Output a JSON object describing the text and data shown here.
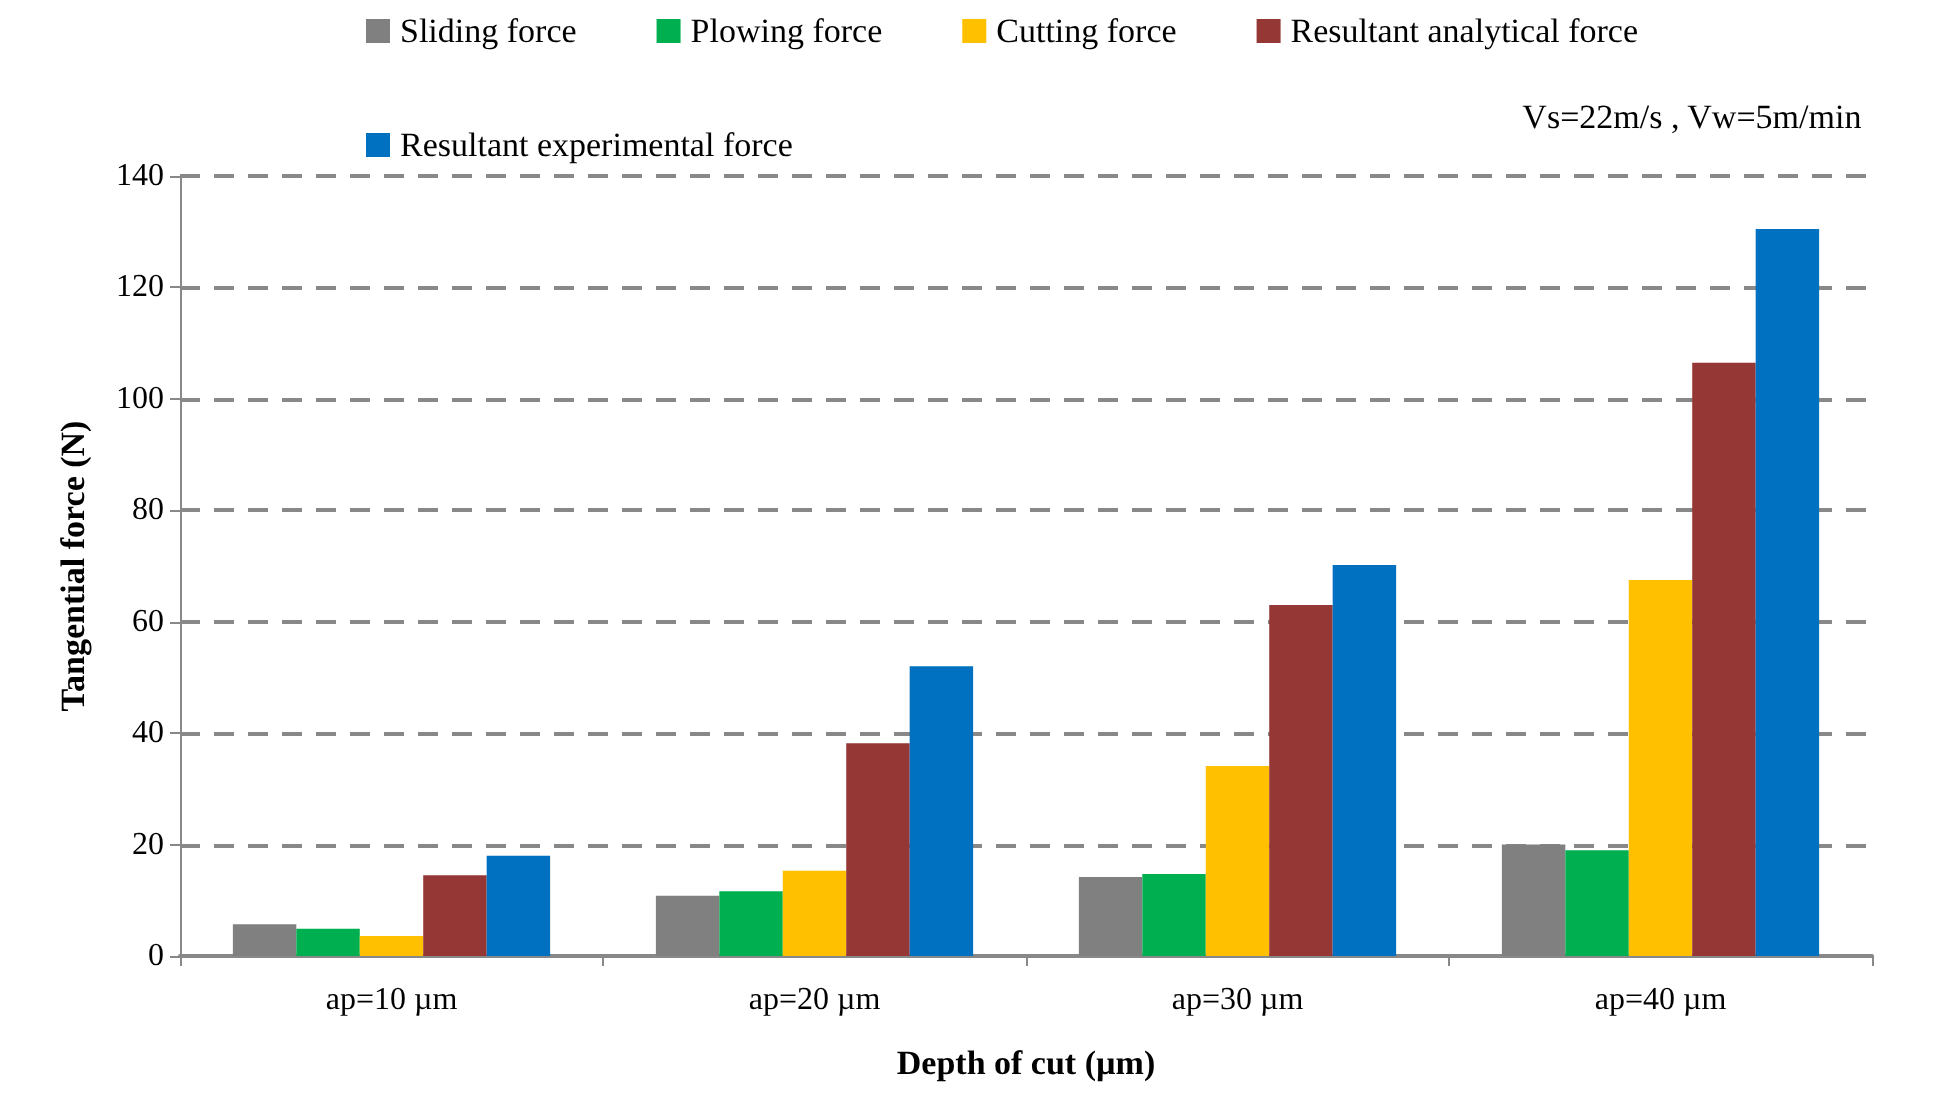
{
  "chart_data": {
    "type": "bar",
    "xlabel": "Depth of cut (µm)",
    "ylabel": "Tangential force (N)",
    "categories": [
      "ap=10 µm",
      "ap=20 µm",
      "ap=30 µm",
      "ap=40 µm"
    ],
    "series": [
      {
        "name": "Sliding force",
        "color": "#808080",
        "values": [
          5.7,
          10.8,
          14.2,
          20
        ]
      },
      {
        "name": "Plowing force",
        "color": "#00b050",
        "values": [
          4.9,
          11.6,
          14.7,
          19
        ]
      },
      {
        "name": "Cutting force",
        "color": "#ffc000",
        "values": [
          3.6,
          15.3,
          34.1,
          67.5
        ]
      },
      {
        "name": "Resultant analytical force",
        "color": "#953735",
        "values": [
          14.5,
          38.2,
          63,
          106.5
        ]
      },
      {
        "name": "Resultant experimental force",
        "color": "#0070c0",
        "values": [
          18,
          52,
          70.2,
          130.5
        ]
      }
    ],
    "ylim": [
      0,
      140
    ],
    "yticks": [
      0,
      20,
      40,
      60,
      80,
      100,
      120,
      140
    ],
    "grid": "y",
    "legend": "top",
    "annotations": [
      "Vs=22m/s , Vw=5m/min"
    ]
  }
}
